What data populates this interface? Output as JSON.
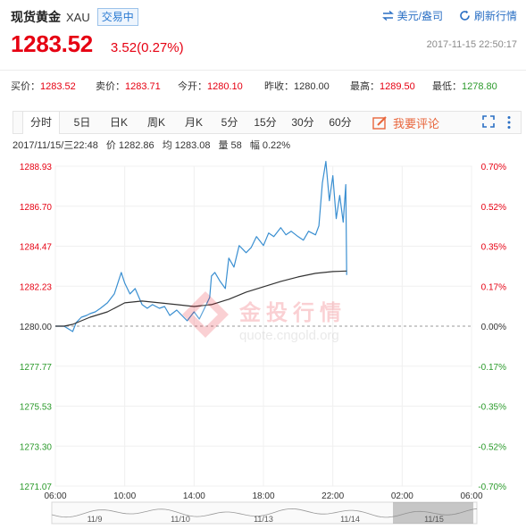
{
  "header": {
    "title": "现货黄金",
    "symbol": "XAU",
    "badge": "交易中",
    "currency_link": "美元/盎司",
    "refresh_link": "刷新行情",
    "price": "1283.52",
    "change": "3.52(0.27%)",
    "timestamp": "2017-11-15 22:50:17"
  },
  "quotes": [
    {
      "label": "买价：",
      "value": "1283.52",
      "color": "#e60012"
    },
    {
      "label": "卖价：",
      "value": "1283.71",
      "color": "#e60012"
    },
    {
      "label": "今开：",
      "value": "1280.10",
      "color": "#e60012"
    },
    {
      "label": "昨收：",
      "value": "1280.00",
      "color": "#333333"
    },
    {
      "label": "最高：",
      "value": "1289.50",
      "color": "#e60012"
    },
    {
      "label": "最低：",
      "value": "1278.80",
      "color": "#2b9a2b"
    }
  ],
  "tabs": [
    "分时",
    "5日",
    "日K",
    "周K",
    "月K",
    "5分",
    "15分",
    "30分",
    "60分"
  ],
  "active_tab": "分时",
  "comment_button": "我要评论",
  "info_line": {
    "datetime": "2017/11/15/三22:48",
    "price_label": "价",
    "price": "1282.86",
    "avg_label": "均",
    "avg": "1283.08",
    "volume_label": "量",
    "volume": "58",
    "amplitude_label": "幅",
    "amplitude": "0.22%"
  },
  "watermark": {
    "text": "金投行情",
    "url": "quote.cngold.org"
  },
  "colors": {
    "up": "#e60012",
    "down": "#2b9a2b",
    "price_line": "#3a8fd1",
    "avg_line": "#333333",
    "accent": "#2a6fc4"
  },
  "chart_data": {
    "type": "line",
    "y_ticks": [
      "1288.93",
      "1286.70",
      "1284.47",
      "1282.23",
      "1280.00",
      "1277.77",
      "1275.53",
      "1273.30",
      "1271.07"
    ],
    "pct_ticks": [
      "0.70%",
      "0.52%",
      "0.35%",
      "0.17%",
      "0.00%",
      "-0.17%",
      "-0.35%",
      "-0.52%",
      "-0.70%"
    ],
    "x_ticks": [
      "06:00",
      "10:00",
      "14:00",
      "18:00",
      "22:00",
      "02:00",
      "06:00"
    ],
    "ylim": [
      1271.07,
      1288.93
    ],
    "xlim_hours": [
      6,
      30
    ],
    "baseline": 1280.0,
    "series": [
      {
        "name": "价",
        "x": [
          6.0,
          6.5,
          7.0,
          7.2,
          7.5,
          7.8,
          8.0,
          8.3,
          8.6,
          9.0,
          9.4,
          9.6,
          9.8,
          10.0,
          10.3,
          10.6,
          11.0,
          11.3,
          11.6,
          12.0,
          12.3,
          12.6,
          13.0,
          13.3,
          13.6,
          14.0,
          14.3,
          14.6,
          14.9,
          15.0,
          15.2,
          15.5,
          15.8,
          16.0,
          16.3,
          16.6,
          17.0,
          17.3,
          17.6,
          18.0,
          18.3,
          18.6,
          19.0,
          19.3,
          19.6,
          20.0,
          20.3,
          20.6,
          21.0,
          21.2,
          21.4,
          21.6,
          21.8,
          22.0,
          22.2,
          22.4,
          22.6,
          22.75,
          22.8
        ],
        "values": [
          1280.0,
          1280.0,
          1279.7,
          1280.2,
          1280.5,
          1280.6,
          1280.7,
          1280.8,
          1281.0,
          1281.3,
          1281.8,
          1282.4,
          1283.0,
          1282.4,
          1281.8,
          1282.1,
          1281.2,
          1281.0,
          1281.2,
          1281.0,
          1281.1,
          1280.6,
          1280.9,
          1280.6,
          1280.3,
          1280.8,
          1280.4,
          1281.0,
          1281.6,
          1282.8,
          1283.0,
          1282.5,
          1282.1,
          1283.8,
          1283.3,
          1284.5,
          1284.1,
          1284.4,
          1285.0,
          1284.5,
          1285.2,
          1285.0,
          1285.5,
          1285.1,
          1285.3,
          1285.0,
          1284.8,
          1285.3,
          1285.1,
          1285.6,
          1288.0,
          1289.2,
          1287.0,
          1288.4,
          1286.0,
          1287.3,
          1285.8,
          1287.9,
          1282.86
        ]
      },
      {
        "name": "均",
        "x": [
          6.0,
          6.5,
          7.0,
          8.0,
          9.0,
          10.0,
          11.0,
          12.0,
          13.0,
          14.0,
          15.0,
          16.0,
          17.0,
          18.0,
          19.0,
          20.0,
          21.0,
          22.0,
          22.8
        ],
        "values": [
          1280.0,
          1280.0,
          1280.1,
          1280.5,
          1280.8,
          1281.3,
          1281.4,
          1281.3,
          1281.2,
          1281.1,
          1281.2,
          1281.5,
          1281.9,
          1282.2,
          1282.5,
          1282.75,
          1282.95,
          1283.05,
          1283.08
        ]
      }
    ]
  },
  "mini_nav": {
    "dates": [
      "11/9",
      "11/10",
      "11/13",
      "11/14",
      "11/15"
    ]
  }
}
